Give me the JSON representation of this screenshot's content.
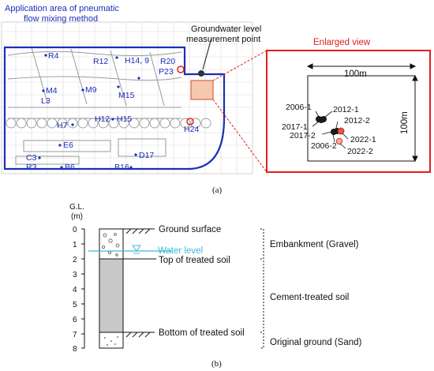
{
  "panel_a": {
    "area_title_line1": "Application area of pneumatic",
    "area_title_line2": "flow mixing method",
    "gw_label_line1": "Groundwater level",
    "gw_label_line2": "measurement point",
    "enlarged_label": "Enlarged view",
    "zones": [
      "R4",
      "R12",
      "H14, 9",
      "R20",
      "P23",
      "M4",
      "M9",
      "M15",
      "L3",
      "H7",
      "H12",
      "H15",
      "H24",
      "E6",
      "D17",
      "C3",
      "R3",
      "B6",
      "B16"
    ],
    "dim_horizontal": "100m",
    "dim_vertical": "100m",
    "points": [
      {
        "label": "2006-1",
        "color": "#1a1a1a"
      },
      {
        "label": "2012-1",
        "color": "#1a1a1a"
      },
      {
        "label": "2017-1",
        "color": "#1a1a1a"
      },
      {
        "label": "2012-2",
        "color": "#1a1a1a"
      },
      {
        "label": "2017-2",
        "color": "#1a1a1a"
      },
      {
        "label": "2022-1",
        "color": "#e8553a"
      },
      {
        "label": "2006-2",
        "color": "#1a1a1a"
      },
      {
        "label": "2022-2",
        "color": "#f0b8a8"
      }
    ],
    "caption": "(a)"
  },
  "panel_b": {
    "gl_label": "G.L.",
    "unit_label": "(m)",
    "depth_ticks": [
      "0",
      "1",
      "2",
      "3",
      "4",
      "5",
      "6",
      "7",
      "8"
    ],
    "ground_surface": "Ground surface",
    "water_level": "Water level",
    "top_treated": "Top of treated soil",
    "bottom_treated": "Bottom of treated soil",
    "embankment": "Embankment (Gravel)",
    "cement_treated": "Cement-treated soil",
    "original_ground": "Original ground (Sand)",
    "caption": "(b)",
    "colors": {
      "water": "#3fb8d8",
      "treated": "#c8c8c8"
    }
  }
}
